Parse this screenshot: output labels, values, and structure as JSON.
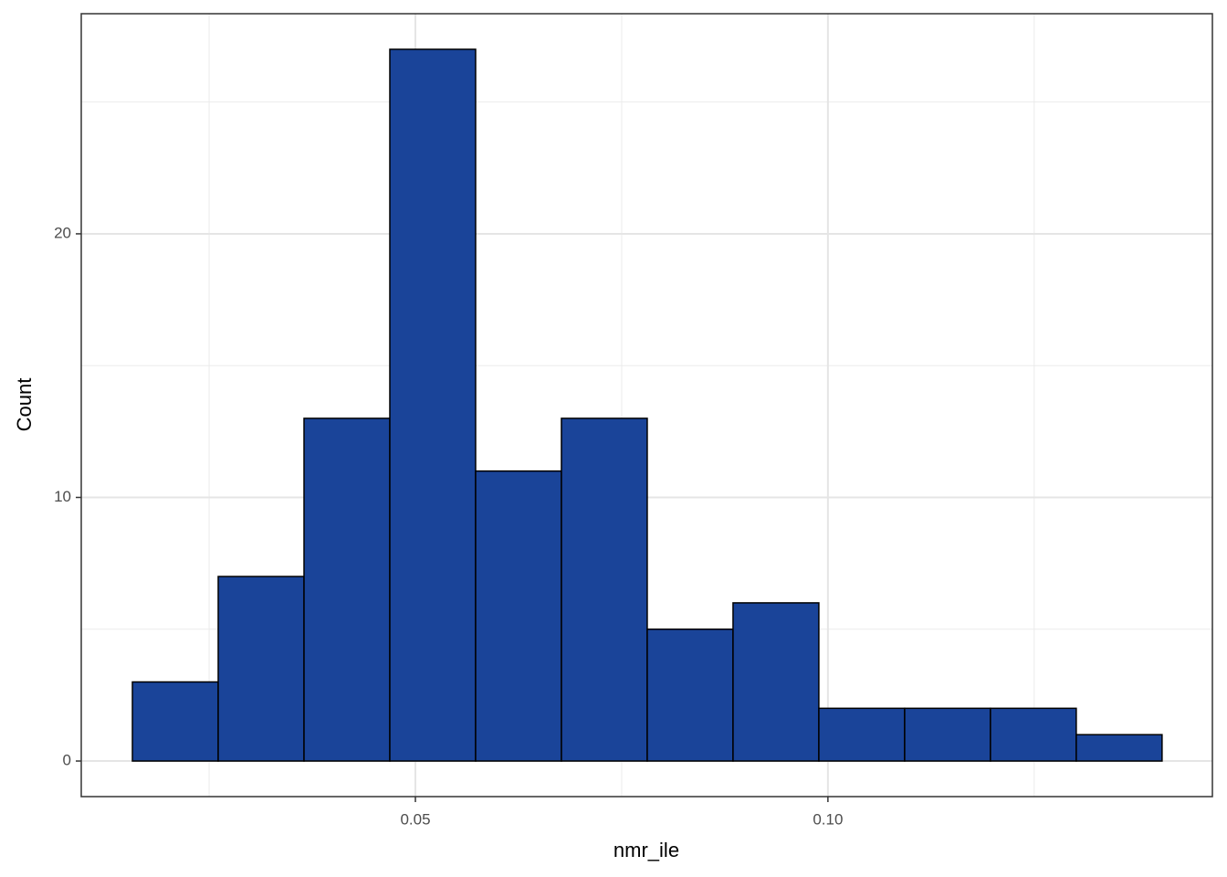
{
  "chart_data": {
    "type": "histogram",
    "x_label": "nmr_ile",
    "y_label": "Count",
    "bins": [
      0.0157,
      0.0261,
      0.0365,
      0.0469,
      0.0573,
      0.0677,
      0.0781,
      0.0885,
      0.0989,
      0.1093,
      0.1197,
      0.1301,
      0.1405
    ],
    "values": [
      3,
      7,
      13,
      27,
      11,
      13,
      5,
      6,
      2,
      2,
      2,
      1
    ],
    "color": "#1a4499",
    "xlim": [
      0.0095,
      0.1466
    ],
    "ylim": [
      -1.35,
      28.35
    ],
    "xticks": [
      {
        "value": 0.05,
        "label": "0.05"
      },
      {
        "value": 0.1,
        "label": "0.10"
      }
    ],
    "yticks": [
      0,
      10,
      20
    ],
    "x_minor_ticks": [
      0.025,
      0.075,
      0.125
    ],
    "y_minor_ticks": [
      5,
      15,
      25
    ],
    "grid": true
  }
}
